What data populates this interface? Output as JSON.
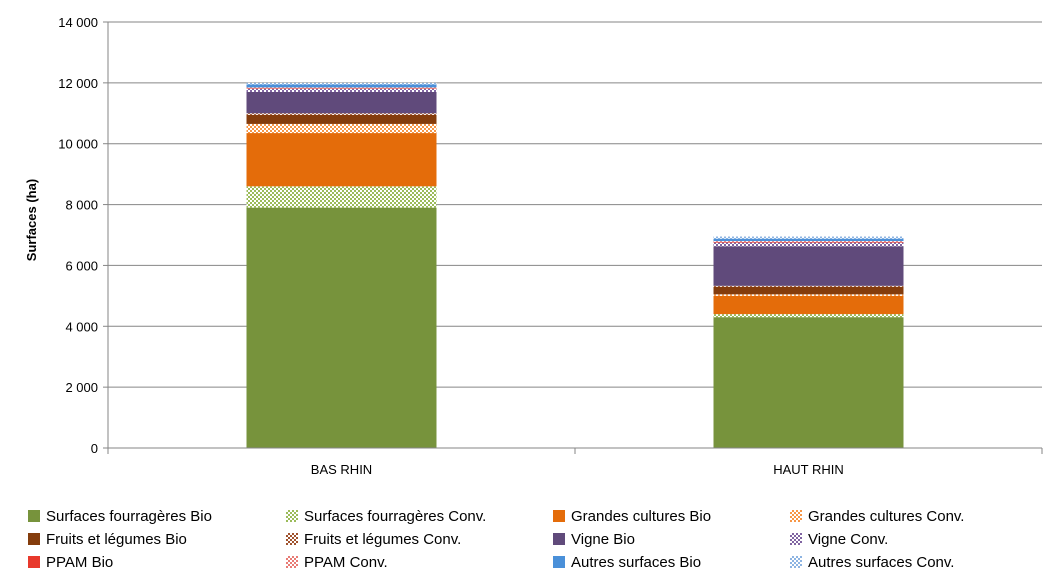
{
  "chart_data": {
    "type": "bar",
    "stacked": true,
    "ylabel": "Surfaces (ha)",
    "ylim": [
      0,
      14000
    ],
    "yticks": [
      0,
      2000,
      4000,
      6000,
      8000,
      10000,
      12000,
      14000
    ],
    "ytick_labels": [
      "0",
      "2 000",
      "4 000",
      "6 000",
      "8 000",
      "10 000",
      "12 000",
      "14 000"
    ],
    "categories": [
      "BAS RHIN",
      "HAUT RHIN"
    ],
    "grid": "horizontal",
    "legend_position": "bottom",
    "series": [
      {
        "name": "Surfaces fourragères Bio",
        "values": [
          7900,
          4300
        ],
        "color": "#77933C",
        "pattern": false
      },
      {
        "name": "Surfaces fourragères Conv.",
        "values": [
          700,
          100
        ],
        "color": "#9BBB59",
        "pattern": true
      },
      {
        "name": "Grandes cultures Bio",
        "values": [
          1750,
          600
        ],
        "color": "#E46C0A",
        "pattern": false
      },
      {
        "name": "Grandes cultures Conv.",
        "values": [
          300,
          50
        ],
        "color": "#F79646",
        "pattern": true
      },
      {
        "name": "Fruits et légumes Bio",
        "values": [
          300,
          250
        ],
        "color": "#843C0C",
        "pattern": false
      },
      {
        "name": "Fruits et légumes Conv.",
        "values": [
          50,
          30
        ],
        "color": "#A0522D",
        "pattern": true
      },
      {
        "name": "Vigne Bio",
        "values": [
          700,
          1300
        ],
        "color": "#604A7B",
        "pattern": false
      },
      {
        "name": "Vigne Conv.",
        "values": [
          100,
          120
        ],
        "color": "#8064A2",
        "pattern": true
      },
      {
        "name": "PPAM Bio",
        "values": [
          20,
          20
        ],
        "color": "#E8392C",
        "pattern": false
      },
      {
        "name": "PPAM Conv.",
        "values": [
          30,
          30
        ],
        "color": "#E87B75",
        "pattern": true
      },
      {
        "name": "Autres surfaces Bio",
        "values": [
          100,
          80
        ],
        "color": "#4A90D9",
        "pattern": false
      },
      {
        "name": "Autres surfaces Conv.",
        "values": [
          50,
          70
        ],
        "color": "#8DB4E2",
        "pattern": true
      }
    ]
  }
}
